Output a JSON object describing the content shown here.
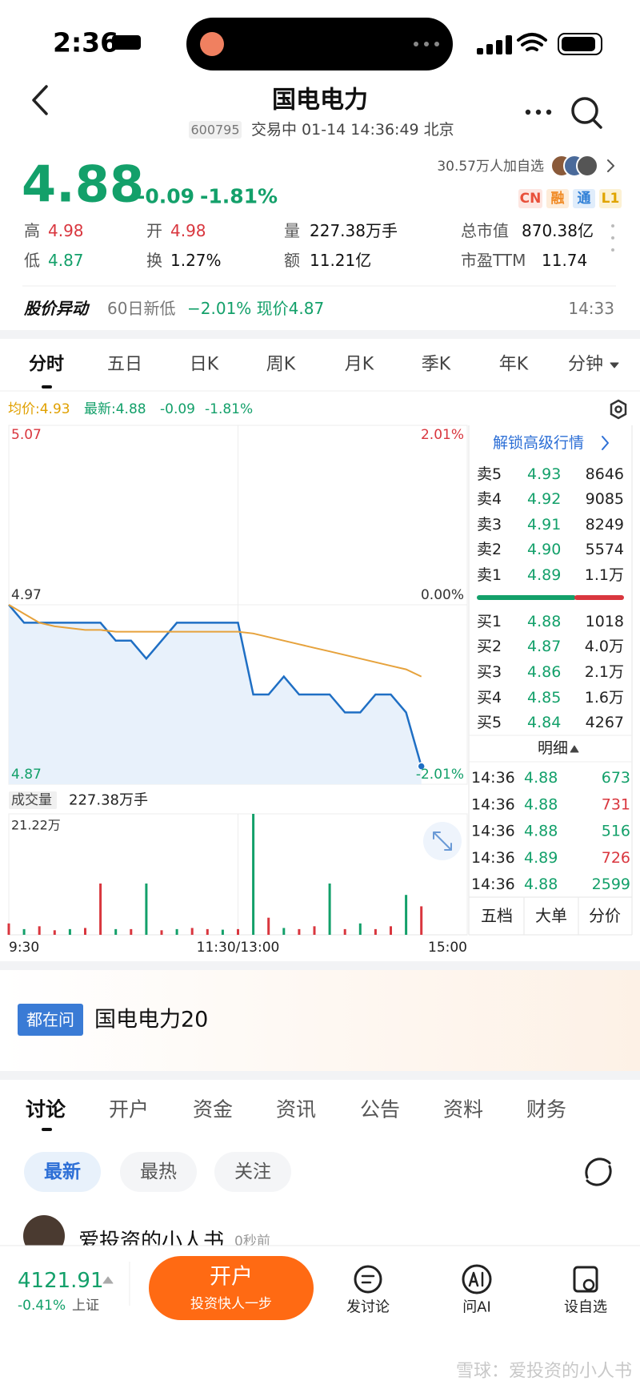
{
  "status": {
    "time": "2:36"
  },
  "header": {
    "title": "国电电力",
    "code": "600795",
    "status": "交易中 01-14 14:36:49 北京"
  },
  "quote": {
    "price": "4.88",
    "change": "-0.09",
    "pct": "-1.81%",
    "watchers": "30.57万人加自选",
    "badges": [
      {
        "text": "CN",
        "color": "#e8503a",
        "bg": "#fde6e1"
      },
      {
        "text": "融",
        "color": "#f08a24",
        "bg": "#fdecd9"
      },
      {
        "text": "通",
        "color": "#2f7fd6",
        "bg": "#e0edfb"
      },
      {
        "text": "L1",
        "color": "#e0a400",
        "bg": "#fcf1d3"
      }
    ]
  },
  "stats": [
    {
      "label": "高",
      "value": "4.98",
      "color": "#d9363e"
    },
    {
      "label": "开",
      "value": "4.98",
      "color": "#d9363e"
    },
    {
      "label": "量",
      "value": "227.38万手",
      "color": "#111"
    },
    {
      "label": "总市值",
      "value": "870.38亿",
      "color": "#111"
    },
    {
      "label": "低",
      "value": "4.87",
      "color": "#13a06a"
    },
    {
      "label": "换",
      "value": "1.27%",
      "color": "#111"
    },
    {
      "label": "额",
      "value": "11.21亿",
      "color": "#111"
    },
    {
      "label": "市盈TTM",
      "value": "11.74",
      "color": "#111"
    }
  ],
  "alert": {
    "title": "股价异动",
    "tag": "60日新低",
    "text": "−2.01% 现价4.87",
    "time": "14:33"
  },
  "tabs": [
    "分时",
    "五日",
    "日K",
    "周K",
    "月K",
    "季K",
    "年K",
    "分钟"
  ],
  "legend": {
    "avg": "均价:4.93",
    "last": "最新:4.88",
    "change": "-0.09",
    "pct": "-1.81%"
  },
  "chart_data": [
    {
      "type": "line",
      "xlim": [
        0,
        240
      ],
      "x": [
        0,
        8,
        16,
        24,
        32,
        40,
        48,
        56,
        64,
        72,
        80,
        88,
        96,
        104,
        112,
        120,
        128,
        136,
        144,
        152,
        160,
        168,
        176,
        184,
        192,
        200,
        208,
        216
      ],
      "ylim": [
        4.87,
        5.07
      ],
      "yticks": [
        5.07,
        4.97,
        4.87
      ],
      "y2lim": [
        -2.01,
        2.01
      ],
      "y2ticks": [
        {
          "value": 2.01,
          "label": "2.01%"
        },
        {
          "value": 0,
          "label": "0.00%"
        },
        {
          "value": -2.01,
          "label": "-2.01%"
        }
      ],
      "tick_colors": [
        "#d9363e",
        "#333",
        "#13a06a"
      ],
      "grid": true,
      "series": [
        {
          "color": "#1f6fc4",
          "values": [
            4.97,
            4.96,
            4.96,
            4.96,
            4.96,
            4.96,
            4.96,
            4.95,
            4.95,
            4.94,
            4.95,
            4.96,
            4.96,
            4.96,
            4.96,
            4.96,
            4.92,
            4.92,
            4.93,
            4.92,
            4.92,
            4.92,
            4.91,
            4.91,
            4.92,
            4.92,
            4.91,
            4.88
          ]
        },
        {
          "color": "#e6a23c",
          "values": [
            4.97,
            4.965,
            4.96,
            4.958,
            4.957,
            4.956,
            4.956,
            4.955,
            4.955,
            4.955,
            4.955,
            4.955,
            4.955,
            4.955,
            4.955,
            4.955,
            4.954,
            4.952,
            4.95,
            4.948,
            4.946,
            4.944,
            4.942,
            4.94,
            4.938,
            4.936,
            4.934,
            4.93
          ]
        }
      ]
    },
    {
      "type": "bar",
      "title": "成交量",
      "total": "227.38万手",
      "xlim": [
        0,
        240
      ],
      "x": [
        0,
        8,
        16,
        24,
        32,
        40,
        48,
        56,
        64,
        72,
        80,
        88,
        96,
        104,
        112,
        120,
        128,
        136,
        144,
        152,
        160,
        168,
        176,
        184,
        192,
        200,
        208,
        216
      ],
      "xticks": [
        {
          "value": 0,
          "label": "9:30"
        },
        {
          "value": 120,
          "label": "11:30/13:00"
        },
        {
          "value": 240,
          "label": "15:00"
        }
      ],
      "ylim": [
        0,
        21.22
      ],
      "yticks": [
        {
          "value": 21.22,
          "label": "21.22万"
        }
      ],
      "values": [
        2,
        1,
        1.5,
        0.8,
        1,
        1.2,
        9,
        1,
        1,
        9,
        0.8,
        1,
        1.2,
        1,
        0.9,
        1,
        21.22,
        3,
        1.2,
        1,
        1.5,
        9,
        1,
        2,
        1,
        1.5,
        7,
        5
      ],
      "colors": [
        "#d9363e",
        "#13a06a",
        "#d9363e",
        "#d9363e",
        "#13a06a",
        "#d9363e",
        "#d9363e",
        "#13a06a",
        "#d9363e",
        "#13a06a",
        "#d9363e",
        "#13a06a",
        "#d9363e",
        "#d9363e",
        "#13a06a",
        "#d9363e",
        "#13a06a",
        "#d9363e",
        "#13a06a",
        "#d9363e",
        "#d9363e",
        "#13a06a",
        "#d9363e",
        "#13a06a",
        "#d9363e",
        "#d9363e",
        "#13a06a",
        "#d9363e"
      ]
    }
  ],
  "orderbook": {
    "unlock": "解锁高级行情",
    "sells": [
      [
        "卖5",
        "4.93",
        "8646"
      ],
      [
        "卖4",
        "4.92",
        "9085"
      ],
      [
        "卖3",
        "4.91",
        "8249"
      ],
      [
        "卖2",
        "4.90",
        "5574"
      ],
      [
        "卖1",
        "4.89",
        "1.1万"
      ]
    ],
    "buys": [
      [
        "买1",
        "4.88",
        "1018"
      ],
      [
        "买2",
        "4.87",
        "4.0万"
      ],
      [
        "买3",
        "4.86",
        "2.1万"
      ],
      [
        "买4",
        "4.85",
        "1.6万"
      ],
      [
        "买5",
        "4.84",
        "4267"
      ]
    ],
    "detail": "明细",
    "trades": [
      {
        "time": "14:36",
        "price": "4.88",
        "vol": "673",
        "color": "#13a06a"
      },
      {
        "time": "14:36",
        "price": "4.88",
        "vol": "731",
        "color": "#d9363e"
      },
      {
        "time": "14:36",
        "price": "4.88",
        "vol": "516",
        "color": "#13a06a"
      },
      {
        "time": "14:36",
        "price": "4.89",
        "vol": "726",
        "color": "#d9363e"
      },
      {
        "time": "14:36",
        "price": "4.88",
        "vol": "2599",
        "color": "#13a06a"
      }
    ],
    "tabs": [
      "五档",
      "大单",
      "分价"
    ]
  },
  "banner": {
    "badge": "都在问",
    "text": "国电电力20"
  },
  "discuss": {
    "tabs": [
      "讨论",
      "开户",
      "资金",
      "资讯",
      "公告",
      "资料",
      "财务"
    ],
    "filters": [
      "最新",
      "最热",
      "关注"
    ],
    "post": {
      "author": "爱投资的小人书",
      "time": "0秒前"
    }
  },
  "bottom": {
    "index": "4121.91",
    "pct": "-0.41%",
    "name": "上证",
    "button": "开户",
    "button_sub": "投资快人一步",
    "actions": [
      "发讨论",
      "问AI",
      "设自选"
    ]
  },
  "watermark": "雪球：爱投资的小人书"
}
